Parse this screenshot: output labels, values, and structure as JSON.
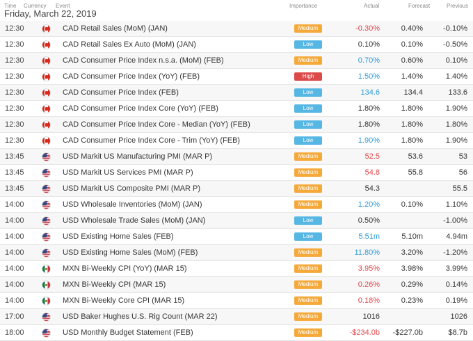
{
  "columns": {
    "time": "Time",
    "currency": "Currency",
    "event": "Event",
    "importance": "Importance",
    "actual": "Actual",
    "forecast": "Forecast",
    "previous": "Previous"
  },
  "date": "Friday, March 22, 2019",
  "colors": {
    "medium": "#f6a93b",
    "low": "#56b7e4",
    "high": "#dc4a4a",
    "negative": "#e2474b",
    "positive": "#2e9bd6"
  },
  "rows": [
    {
      "time": "12:30",
      "flag": "canada-flag-icon",
      "event": "CAD Retail Sales (MoM) (JAN)",
      "importance": "Medium",
      "actual": "-0.30%",
      "actual_tone": "neg",
      "forecast": "0.40%",
      "previous": "-0.10%"
    },
    {
      "time": "12:30",
      "flag": "canada-flag-icon",
      "event": "CAD Retail Sales Ex Auto (MoM) (JAN)",
      "importance": "Low",
      "actual": "0.10%",
      "actual_tone": "neu",
      "forecast": "0.10%",
      "previous": "-0.50%"
    },
    {
      "time": "12:30",
      "flag": "canada-flag-icon",
      "event": "CAD Consumer Price Index n.s.a. (MoM) (FEB)",
      "importance": "Medium",
      "actual": "0.70%",
      "actual_tone": "pos",
      "forecast": "0.60%",
      "previous": "0.10%"
    },
    {
      "time": "12:30",
      "flag": "canada-flag-icon",
      "event": "CAD Consumer Price Index (YoY) (FEB)",
      "importance": "High",
      "actual": "1.50%",
      "actual_tone": "pos",
      "forecast": "1.40%",
      "previous": "1.40%"
    },
    {
      "time": "12:30",
      "flag": "canada-flag-icon",
      "event": "CAD Consumer Price Index (FEB)",
      "importance": "Low",
      "actual": "134.6",
      "actual_tone": "pos",
      "forecast": "134.4",
      "previous": "133.6"
    },
    {
      "time": "12:30",
      "flag": "canada-flag-icon",
      "event": "CAD Consumer Price Index Core (YoY) (FEB)",
      "importance": "Low",
      "actual": "1.80%",
      "actual_tone": "neu",
      "forecast": "1.80%",
      "previous": "1.90%"
    },
    {
      "time": "12:30",
      "flag": "canada-flag-icon",
      "event": "CAD Consumer Price Index Core - Median (YoY) (FEB)",
      "importance": "Low",
      "actual": "1.80%",
      "actual_tone": "neu",
      "forecast": "1.80%",
      "previous": "1.80%"
    },
    {
      "time": "12:30",
      "flag": "canada-flag-icon",
      "event": "CAD Consumer Price Index Core - Trim (YoY) (FEB)",
      "importance": "Low",
      "actual": "1.90%",
      "actual_tone": "pos",
      "forecast": "1.80%",
      "previous": "1.90%"
    },
    {
      "time": "13:45",
      "flag": "us-flag-icon",
      "event": "USD Markit US Manufacturing PMI (MAR P)",
      "importance": "Medium",
      "actual": "52.5",
      "actual_tone": "neg",
      "forecast": "53.6",
      "previous": "53"
    },
    {
      "time": "13:45",
      "flag": "us-flag-icon",
      "event": "USD Markit US Services PMI (MAR P)",
      "importance": "Medium",
      "actual": "54.8",
      "actual_tone": "neg",
      "forecast": "55.8",
      "previous": "56"
    },
    {
      "time": "13:45",
      "flag": "us-flag-icon",
      "event": "USD Markit US Composite PMI (MAR P)",
      "importance": "Medium",
      "actual": "54.3",
      "actual_tone": "neu",
      "forecast": "",
      "previous": "55.5"
    },
    {
      "time": "14:00",
      "flag": "us-flag-icon",
      "event": "USD Wholesale Inventories (MoM) (JAN)",
      "importance": "Medium",
      "actual": "1.20%",
      "actual_tone": "pos",
      "forecast": "0.10%",
      "previous": "1.10%"
    },
    {
      "time": "14:00",
      "flag": "us-flag-icon",
      "event": "USD Wholesale Trade Sales (MoM) (JAN)",
      "importance": "Low",
      "actual": "0.50%",
      "actual_tone": "neu",
      "forecast": "",
      "previous": "-1.00%"
    },
    {
      "time": "14:00",
      "flag": "us-flag-icon",
      "event": "USD Existing Home Sales (FEB)",
      "importance": "Low",
      "actual": "5.51m",
      "actual_tone": "pos",
      "forecast": "5.10m",
      "previous": "4.94m"
    },
    {
      "time": "14:00",
      "flag": "us-flag-icon",
      "event": "USD Existing Home Sales (MoM) (FEB)",
      "importance": "Medium",
      "actual": "11.80%",
      "actual_tone": "pos",
      "forecast": "3.20%",
      "previous": "-1.20%"
    },
    {
      "time": "14:00",
      "flag": "mexico-flag-icon",
      "event": "MXN Bi-Weekly CPI (YoY) (MAR 15)",
      "importance": "Medium",
      "actual": "3.95%",
      "actual_tone": "neg",
      "forecast": "3.98%",
      "previous": "3.99%"
    },
    {
      "time": "14:00",
      "flag": "mexico-flag-icon",
      "event": "MXN Bi-Weekly CPI (MAR 15)",
      "importance": "Medium",
      "actual": "0.26%",
      "actual_tone": "neg",
      "forecast": "0.29%",
      "previous": "0.14%"
    },
    {
      "time": "14:00",
      "flag": "mexico-flag-icon",
      "event": "MXN Bi-Weekly Core CPI (MAR 15)",
      "importance": "Medium",
      "actual": "0.18%",
      "actual_tone": "neg",
      "forecast": "0.23%",
      "previous": "0.19%"
    },
    {
      "time": "17:00",
      "flag": "us-flag-icon",
      "event": "USD Baker Hughes U.S. Rig Count (MAR 22)",
      "importance": "Medium",
      "actual": "1016",
      "actual_tone": "neu",
      "forecast": "",
      "previous": "1026"
    },
    {
      "time": "18:00",
      "flag": "us-flag-icon",
      "event": "USD Monthly Budget Statement (FEB)",
      "importance": "Medium",
      "actual": "-$234.0b",
      "actual_tone": "neg",
      "forecast": "-$227.0b",
      "previous": "$8.7b"
    }
  ]
}
